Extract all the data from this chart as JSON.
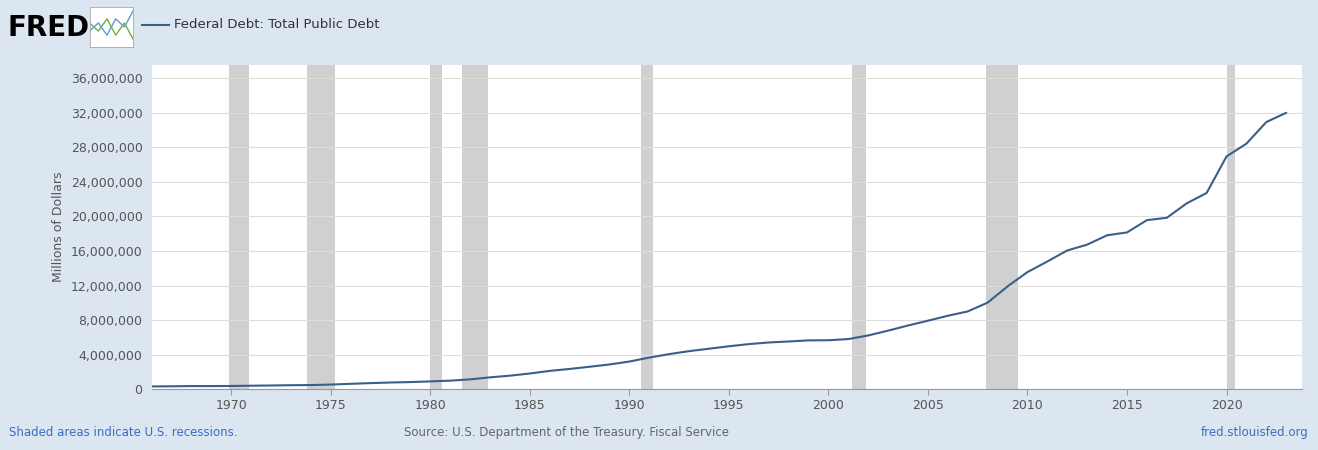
{
  "title": "Federal Debt: Total Public Debt",
  "ylabel": "Millions of Dollars",
  "background_color": "#dce6f0",
  "plot_background": "#ffffff",
  "line_color": "#3a5f8a",
  "line_width": 1.5,
  "yticks": [
    0,
    4000000,
    8000000,
    12000000,
    16000000,
    20000000,
    24000000,
    28000000,
    32000000,
    36000000
  ],
  "ytick_labels": [
    "0",
    "4,000,000",
    "8,000,000",
    "12,000,000",
    "16,000,000",
    "20,000,000",
    "24,000,000",
    "28,000,000",
    "32,000,000",
    "36,000,000"
  ],
  "xticks": [
    1970,
    1975,
    1980,
    1985,
    1990,
    1995,
    2000,
    2005,
    2010,
    2015,
    2020
  ],
  "xlim": [
    1966.0,
    2023.8
  ],
  "ylim": [
    0,
    37500000
  ],
  "recession_bands": [
    [
      1969.9,
      1970.9
    ],
    [
      1973.8,
      1975.2
    ],
    [
      1980.0,
      1980.6
    ],
    [
      1981.6,
      1982.9
    ],
    [
      1990.6,
      1991.2
    ],
    [
      2001.2,
      2001.9
    ],
    [
      2007.9,
      2009.5
    ],
    [
      2020.0,
      2020.4
    ]
  ],
  "recession_color": "#d0d0d0",
  "fred_text": "FRED",
  "legend_label": "Federal Debt: Total Public Debt",
  "source_text": "Source: U.S. Department of the Treasury. Fiscal Service",
  "shaded_text": "Shaded areas indicate U.S. recessions.",
  "url_text": "fred.stlouisfed.org",
  "data_x": [
    1966,
    1967,
    1968,
    1969,
    1970,
    1971,
    1972,
    1973,
    1974,
    1975,
    1976,
    1977,
    1978,
    1979,
    1980,
    1981,
    1982,
    1983,
    1984,
    1985,
    1986,
    1987,
    1988,
    1989,
    1990,
    1991,
    1992,
    1993,
    1994,
    1995,
    1996,
    1997,
    1998,
    1999,
    2000,
    2001,
    2002,
    2003,
    2004,
    2005,
    2006,
    2007,
    2008,
    2009,
    2010,
    2011,
    2012,
    2013,
    2014,
    2015,
    2016,
    2017,
    2018,
    2019,
    2020,
    2021,
    2022,
    2023
  ],
  "data_y": [
    328000,
    341000,
    369000,
    367000,
    381000,
    409000,
    436000,
    467000,
    486000,
    542000,
    630000,
    709000,
    780000,
    830000,
    909000,
    995000,
    1142000,
    1377000,
    1572000,
    1823000,
    2125000,
    2350000,
    2602000,
    2867000,
    3207000,
    3665000,
    4065000,
    4411000,
    4693000,
    4974000,
    5225000,
    5413000,
    5527000,
    5656000,
    5674000,
    5807000,
    6228000,
    6783000,
    7379000,
    7933000,
    8507000,
    9008000,
    10025000,
    11910000,
    13562000,
    14790000,
    16066000,
    16738000,
    17824000,
    18151000,
    19573000,
    19846000,
    21516000,
    22719000,
    26945000,
    28428000,
    30929000,
    32000000
  ]
}
